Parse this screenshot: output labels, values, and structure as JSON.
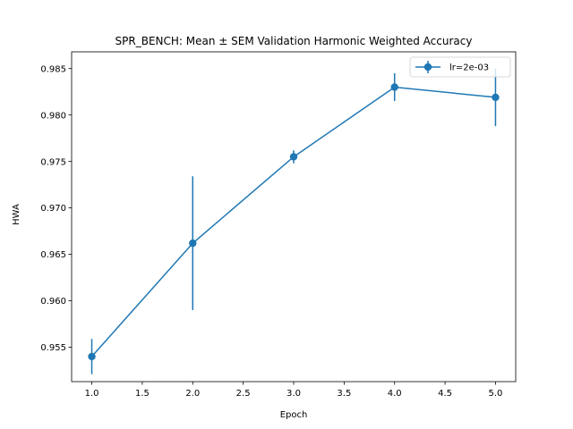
{
  "chart_data": {
    "type": "line",
    "title": "SPR_BENCH: Mean ± SEM Validation Harmonic Weighted Accuracy",
    "xlabel": "Epoch",
    "ylabel": "HWA",
    "xlim": [
      0.8,
      5.2
    ],
    "ylim": [
      0.9513,
      0.9868
    ],
    "xticks": [
      1.0,
      1.5,
      2.0,
      2.5,
      3.0,
      3.5,
      4.0,
      4.5,
      5.0
    ],
    "xtick_labels": [
      "1.0",
      "1.5",
      "2.0",
      "2.5",
      "3.0",
      "3.5",
      "4.0",
      "4.5",
      "5.0"
    ],
    "yticks": [
      0.955,
      0.96,
      0.965,
      0.97,
      0.975,
      0.98,
      0.985
    ],
    "ytick_labels": [
      "0.955",
      "0.960",
      "0.965",
      "0.970",
      "0.975",
      "0.980",
      "0.985"
    ],
    "grid": false,
    "legend_position": "top-right",
    "series": [
      {
        "name": "lr=2e-03",
        "color": "#1f77b4",
        "x": [
          1,
          2,
          3,
          4,
          5
        ],
        "y": [
          0.954,
          0.9662,
          0.9755,
          0.983,
          0.9819
        ],
        "yerr": [
          0.0019,
          0.0072,
          0.0007,
          0.0015,
          0.0031
        ]
      }
    ]
  }
}
